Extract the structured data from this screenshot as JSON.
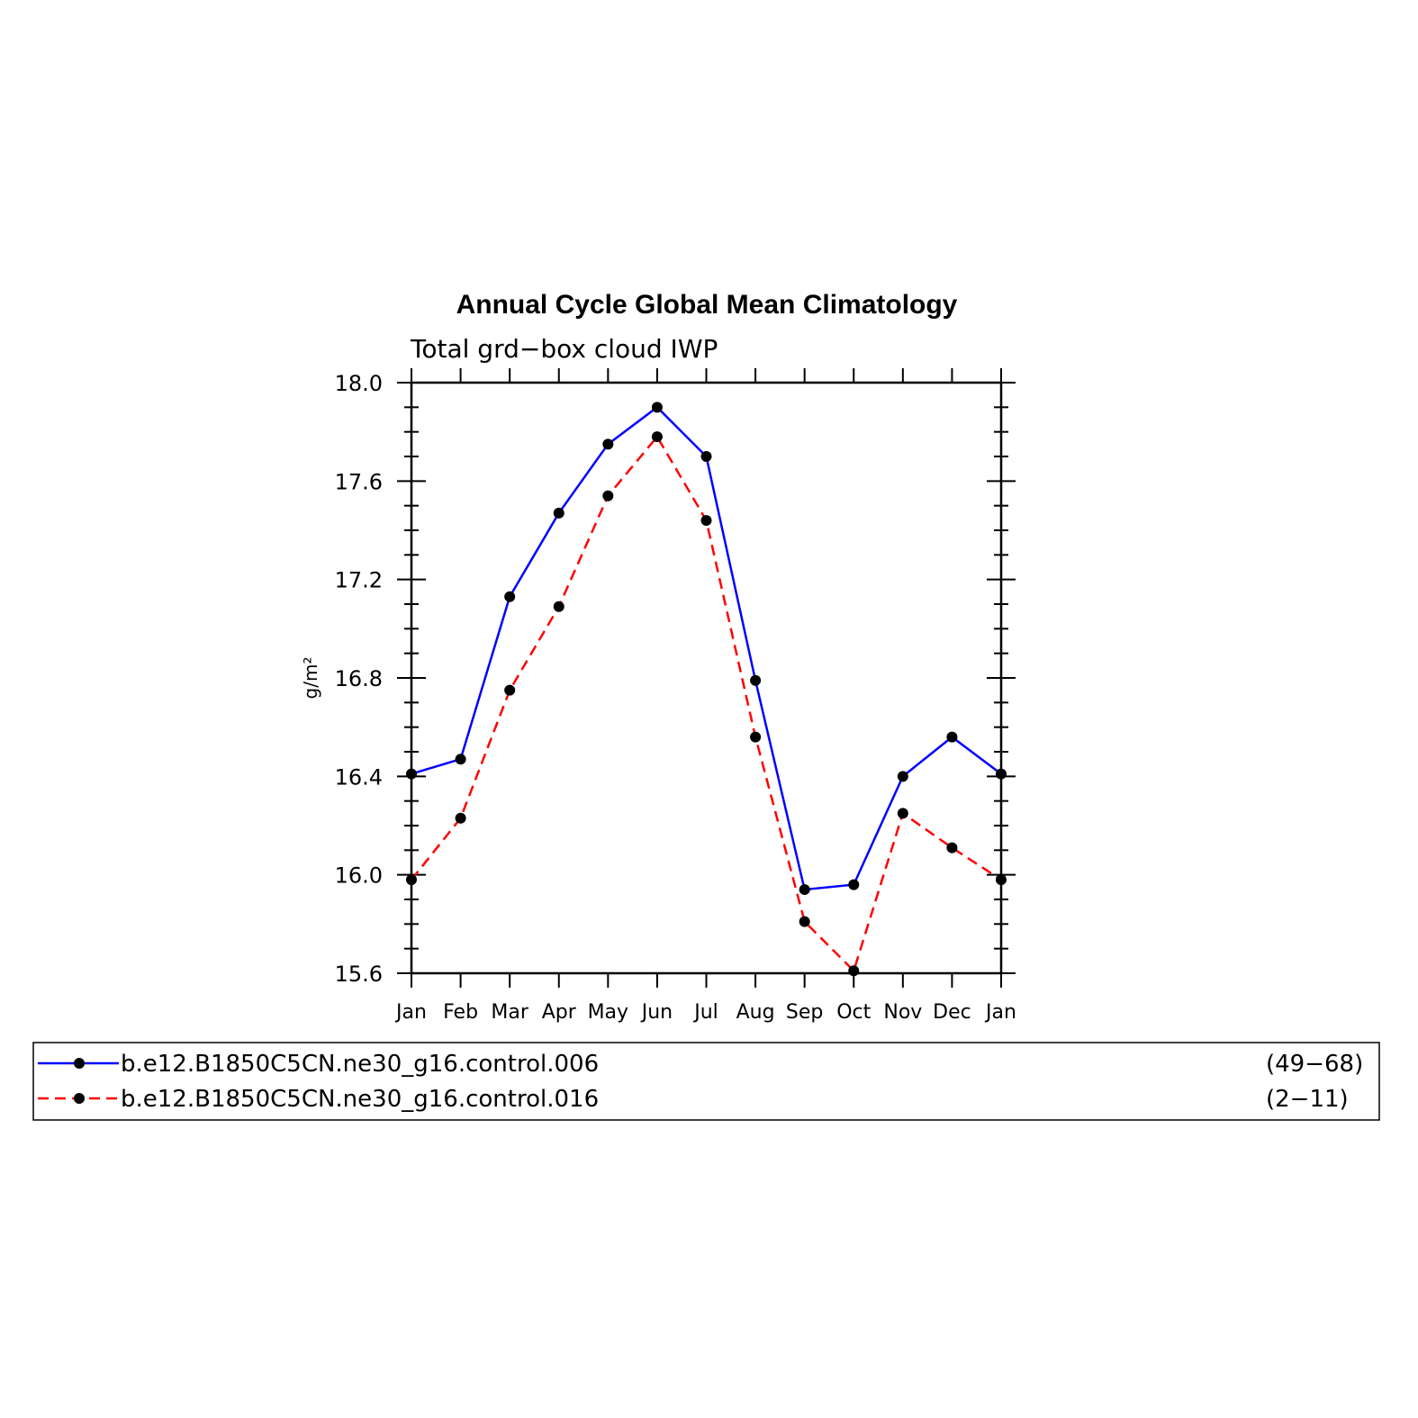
{
  "chart_data": {
    "type": "line",
    "title": "Annual Cycle Global Mean Climatology",
    "subtitle": "Total grd−box cloud IWP",
    "ylabel": "g/m²",
    "xlabel": "",
    "categories": [
      "Jan",
      "Feb",
      "Mar",
      "Apr",
      "May",
      "Jun",
      "Jul",
      "Aug",
      "Sep",
      "Oct",
      "Nov",
      "Dec",
      "Jan"
    ],
    "ylim": [
      15.6,
      18.0
    ],
    "yticks": [
      "18.0",
      "17.6",
      "17.2",
      "16.8",
      "16.4",
      "16.0",
      "15.6"
    ],
    "grid": false,
    "legend_position": "bottom",
    "series": [
      {
        "name": "b.e12.B1850C5CN.ne30_g16.control.006",
        "years": "(49−68)",
        "color": "#0000ff",
        "dash": "solid",
        "values": [
          16.41,
          16.47,
          17.13,
          17.47,
          17.75,
          17.9,
          17.7,
          16.79,
          15.94,
          15.96,
          16.4,
          16.56,
          16.41
        ]
      },
      {
        "name": "b.e12.B1850C5CN.ne30_g16.control.016",
        "years": "(2−11)",
        "color": "#ff0000",
        "dash": "dashed",
        "values": [
          15.98,
          16.23,
          16.75,
          17.09,
          17.54,
          17.78,
          17.44,
          16.56,
          15.81,
          15.61,
          16.25,
          16.11,
          15.98
        ]
      }
    ]
  }
}
